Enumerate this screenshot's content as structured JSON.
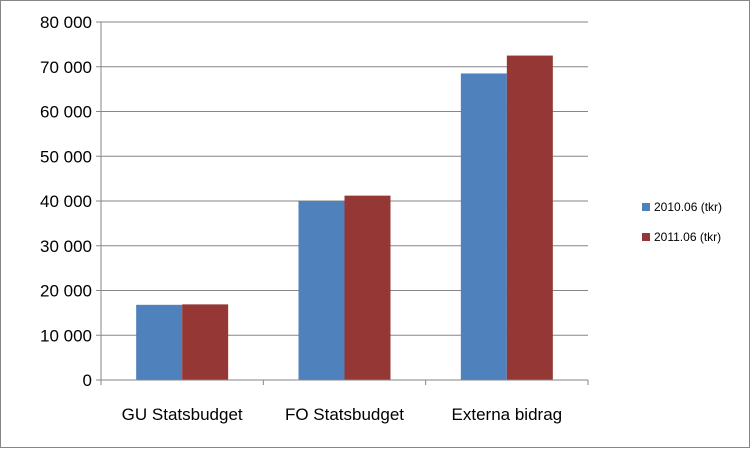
{
  "chart_data": {
    "type": "bar",
    "categories": [
      "GU Statsbudget",
      "FO Statsbudget",
      "Externa bidrag"
    ],
    "series": [
      {
        "name": "2010.06 (tkr)",
        "color": "#4F81BD",
        "values": [
          16800,
          40000,
          68500
        ]
      },
      {
        "name": "2011.06 (tkr)",
        "color": "#953735",
        "values": [
          16900,
          41200,
          72500
        ]
      }
    ],
    "y_ticks": [
      {
        "value": 0,
        "label": "0"
      },
      {
        "value": 10000,
        "label": "10 000"
      },
      {
        "value": 20000,
        "label": "20 000"
      },
      {
        "value": 30000,
        "label": "30 000"
      },
      {
        "value": 40000,
        "label": "40 000"
      },
      {
        "value": 50000,
        "label": "50 000"
      },
      {
        "value": 60000,
        "label": "60 000"
      },
      {
        "value": 70000,
        "label": "70 000"
      },
      {
        "value": 80000,
        "label": "80 000"
      }
    ],
    "ylim": [
      0,
      80000
    ],
    "grid": true,
    "legend_position": "right",
    "title": "",
    "xlabel": "",
    "ylabel": ""
  }
}
